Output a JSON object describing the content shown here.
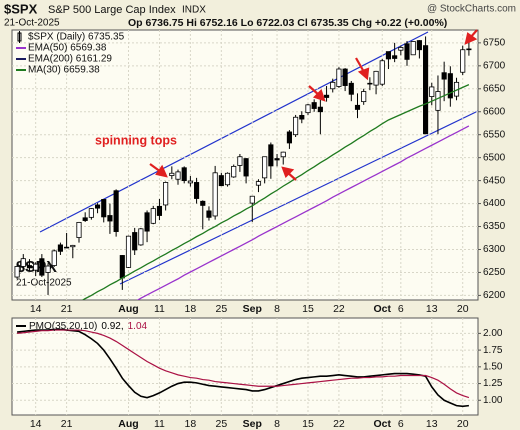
{
  "header": {
    "symbol": "$SPX",
    "name": "S&P 500 Large Cap Index",
    "exchange": "INDX",
    "date": "21-Oct-2025",
    "quote": "Op 6736.75  Hi 6752.16  Lo 6722.03  Cl 6735.35  Chg +0.22 (+0.00%)",
    "source": "@ StockCharts.com"
  },
  "chart_data": [
    {
      "type": "candlestick",
      "title": "$SPX (Daily) 6735.35",
      "categories": [
        null,
        null,
        null,
        "14",
        null,
        null,
        null,
        null,
        "21",
        null,
        null,
        null,
        null,
        null,
        null,
        null,
        null,
        null,
        "Aug",
        null,
        null,
        null,
        null,
        "11",
        null,
        null,
        null,
        null,
        "18",
        null,
        null,
        null,
        null,
        "25",
        null,
        null,
        null,
        null,
        "Sep",
        null,
        null,
        null,
        "8",
        null,
        null,
        null,
        null,
        "15",
        null,
        null,
        null,
        null,
        "22",
        null,
        null,
        null,
        null,
        null,
        null,
        "Oct",
        null,
        null,
        "6",
        null,
        null,
        null,
        null,
        "13",
        null,
        null,
        null,
        null,
        "20",
        null
      ],
      "open": [
        6240,
        6263,
        6265,
        6255,
        6280,
        6250,
        6265,
        6310,
        6305,
        6306,
        6326,
        6369,
        6370,
        6397,
        6409,
        6374,
        6428,
        6287,
        6261,
        6337,
        6310,
        6380,
        6357,
        6394,
        6397,
        6461,
        6453,
        6478,
        6445,
        6446,
        6405,
        6384,
        6373,
        6461,
        6441,
        6458,
        6483,
        6498,
        6401,
        6440,
        6456,
        6528,
        6498,
        6502,
        6556,
        6550,
        6592,
        6598,
        6620,
        6610,
        6636,
        6650,
        6655,
        6693,
        6662,
        6614,
        6622,
        6662,
        6658,
        6660,
        6731,
        6722,
        6734,
        6748,
        6724,
        6755,
        6744,
        6633,
        6603,
        6685,
        6683,
        6634,
        6686,
        6736.75
      ],
      "high": [
        6269,
        6290,
        6279,
        6272,
        6290,
        6270,
        6300,
        6315,
        6336,
        6310,
        6360,
        6381,
        6390,
        6401,
        6410,
        6400,
        6431,
        6288,
        6330,
        6347,
        6347,
        6385,
        6395,
        6410,
        6448,
        6481,
        6474,
        6481,
        6460,
        6456,
        6407,
        6394,
        6482,
        6467,
        6468,
        6485,
        6508,
        6499,
        6416,
        6453,
        6502,
        6533,
        6508,
        6513,
        6560,
        6593,
        6601,
        6617,
        6627,
        6626,
        6656,
        6672,
        6697,
        6695,
        6667,
        6640,
        6650,
        6675,
        6689,
        6715,
        6731,
        6750,
        6744,
        6754,
        6754,
        6756,
        6764,
        6663,
        6679,
        6709,
        6699,
        6674,
        6744,
        6752.16
      ],
      "low": [
        6236,
        6258,
        6252,
        6242,
        6240,
        6201,
        6262,
        6288,
        6303,
        6281,
        6315,
        6360,
        6365,
        6379,
        6359,
        6334,
        6328,
        6212,
        6260,
        6288,
        6308,
        6316,
        6355,
        6364,
        6385,
        6453,
        6441,
        6444,
        6437,
        6400,
        6344,
        6363,
        6365,
        6438,
        6437,
        6456,
        6469,
        6444,
        6360,
        6425,
        6444,
        6454,
        6481,
        6485,
        6519,
        6545,
        6575,
        6593,
        6600,
        6551,
        6622,
        6642,
        6652,
        6645,
        6623,
        6586,
        6615,
        6647,
        6638,
        6656,
        6693,
        6708,
        6723,
        6700,
        6724,
        6716,
        6552,
        6614,
        6551,
        6623,
        6611,
        6625,
        6680,
        6722.03
      ],
      "close": [
        6263,
        6280,
        6260,
        6268,
        6244,
        6264,
        6297,
        6296,
        6305,
        6309,
        6359,
        6363,
        6389,
        6390,
        6371,
        6362,
        6339,
        6238,
        6329,
        6299,
        6345,
        6340,
        6389,
        6374,
        6446,
        6466,
        6469,
        6450,
        6449,
        6411,
        6396,
        6370,
        6467,
        6439,
        6466,
        6481,
        6502,
        6460,
        6416,
        6448,
        6502,
        6482,
        6495,
        6512,
        6532,
        6588,
        6584,
        6615,
        6607,
        6600,
        6631,
        6664,
        6693,
        6657,
        6638,
        6605,
        6644,
        6661,
        6688,
        6711,
        6715,
        6716,
        6740,
        6714,
        6753,
        6735,
        6552,
        6654,
        6644,
        6671,
        6630,
        6664,
        6735,
        6735.35
      ],
      "color": "#000000",
      "overlays": [
        {
          "name": "EMA(50) 6569.38",
          "color": "#9933cc",
          "values": [
            6040,
            6048,
            6055,
            6063,
            6071,
            6079,
            6086,
            6094,
            6102,
            6109,
            6117,
            6125,
            6132,
            6140,
            6148,
            6156,
            6163,
            6171,
            6179,
            6186,
            6194,
            6201,
            6208,
            6215,
            6222,
            6229,
            6236,
            6244,
            6251,
            6258,
            6265,
            6272,
            6279,
            6286,
            6293,
            6300,
            6307,
            6314,
            6321,
            6329,
            6336,
            6343,
            6350,
            6357,
            6364,
            6371,
            6378,
            6385,
            6392,
            6399,
            6406,
            6414,
            6421,
            6428,
            6435,
            6442,
            6449,
            6456,
            6463,
            6470,
            6477,
            6484,
            6491,
            6499,
            6506,
            6513,
            6520,
            6527,
            6534,
            6541,
            6548,
            6555,
            6562,
            6569
          ]
        },
        {
          "name": "EMA(200) 6161.29",
          "color": "#1a1a5e"
        },
        {
          "name": "MA(30) 6659.38",
          "color": "#1f7a1f",
          "values": [
            6110,
            6118,
            6125,
            6133,
            6140,
            6148,
            6155,
            6163,
            6170,
            6178,
            6185,
            6193,
            6200,
            6208,
            6215,
            6223,
            6230,
            6238,
            6245,
            6253,
            6260,
            6268,
            6275,
            6283,
            6290,
            6298,
            6305,
            6313,
            6320,
            6328,
            6335,
            6343,
            6350,
            6358,
            6365,
            6373,
            6380,
            6388,
            6395,
            6404,
            6412,
            6421,
            6429,
            6438,
            6446,
            6455,
            6463,
            6472,
            6480,
            6489,
            6497,
            6506,
            6514,
            6523,
            6531,
            6540,
            6548,
            6557,
            6565,
            6574,
            6582,
            6588,
            6594,
            6600,
            6606,
            6612,
            6617,
            6623,
            6629,
            6635,
            6641,
            6647,
            6653,
            6659
          ]
        }
      ],
      "annotations": [
        "spinning tops"
      ],
      "ylim": [
        6190,
        6778
      ],
      "yticks": [
        6200,
        6250,
        6300,
        6350,
        6400,
        6450,
        6500,
        6550,
        6600,
        6650,
        6700,
        6750
      ],
      "grid": true
    },
    {
      "type": "line",
      "title": "PMO(35,20,10)",
      "series": [
        {
          "name": "0.92,",
          "color": "#000000",
          "values": [
            2.02,
            2.03,
            2.04,
            2.05,
            2.05,
            2.05,
            2.06,
            2.06,
            2.05,
            2.04,
            2.03,
            1.98,
            1.92,
            1.85,
            1.75,
            1.62,
            1.48,
            1.33,
            1.22,
            1.12,
            1.06,
            1.04,
            1.07,
            1.11,
            1.16,
            1.21,
            1.25,
            1.27,
            1.27,
            1.26,
            1.24,
            1.22,
            1.21,
            1.2,
            1.19,
            1.18,
            1.17,
            1.16,
            1.14,
            1.14,
            1.16,
            1.19,
            1.22,
            1.25,
            1.28,
            1.31,
            1.33,
            1.34,
            1.35,
            1.36,
            1.36,
            1.37,
            1.38,
            1.37,
            1.36,
            1.35,
            1.35,
            1.36,
            1.37,
            1.38,
            1.39,
            1.4,
            1.4,
            1.4,
            1.39,
            1.38,
            1.36,
            1.2,
            1.08,
            1.0,
            0.96,
            0.92,
            0.91,
            0.92
          ]
        },
        {
          "name": "1.04",
          "color": "#aa1144",
          "values": [
            2.0,
            2.01,
            2.02,
            2.03,
            2.04,
            2.04,
            2.05,
            2.05,
            2.05,
            2.05,
            2.05,
            2.04,
            2.02,
            2.0,
            1.97,
            1.93,
            1.88,
            1.82,
            1.76,
            1.7,
            1.64,
            1.58,
            1.53,
            1.48,
            1.44,
            1.41,
            1.38,
            1.36,
            1.34,
            1.33,
            1.31,
            1.3,
            1.28,
            1.27,
            1.26,
            1.25,
            1.24,
            1.23,
            1.22,
            1.21,
            1.21,
            1.21,
            1.21,
            1.22,
            1.23,
            1.24,
            1.25,
            1.26,
            1.27,
            1.28,
            1.29,
            1.3,
            1.31,
            1.32,
            1.33,
            1.33,
            1.34,
            1.34,
            1.35,
            1.35,
            1.36,
            1.36,
            1.37,
            1.37,
            1.37,
            1.37,
            1.37,
            1.34,
            1.3,
            1.24,
            1.17,
            1.11,
            1.07,
            1.04
          ]
        }
      ],
      "ylim": [
        0.78,
        2.23
      ],
      "yticks": [
        {
          "value": 1,
          "label": "1.00"
        },
        {
          "value": 1.25,
          "label": "1.25"
        },
        {
          "value": 1.5,
          "label": "1.50"
        },
        {
          "value": 1.75,
          "label": "1.75"
        },
        {
          "value": 2,
          "label": "2.00"
        }
      ],
      "grid": true
    }
  ]
}
